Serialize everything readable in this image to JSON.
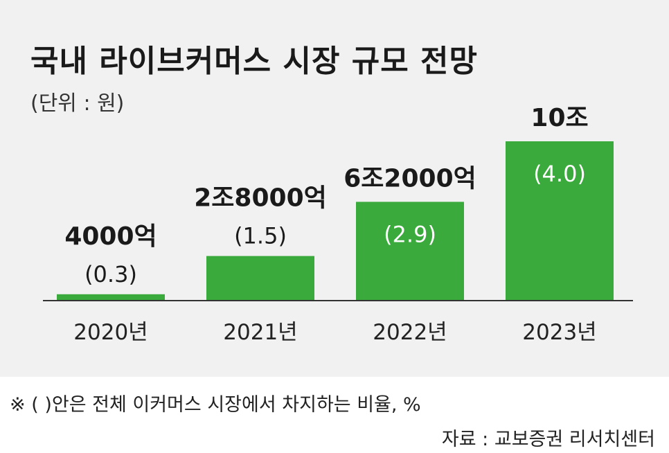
{
  "header": {
    "title": "국내 라이브커머스 시장 규모 전망",
    "unit": "(단위 : 원)"
  },
  "footnote": "※ (   )안은 전체 이커머스 시장에서 차지하는 비율, %",
  "source": "자료 : 교보증권 리서치센터",
  "colors": {
    "bar": "#3aaa3c",
    "background": "#f1f1f1",
    "axis": "#333333",
    "text": "#1a1a1a",
    "in_bar_text": "#ffffff"
  },
  "chart_data": {
    "type": "bar",
    "title": "국내 라이브커머스 시장 규모 전망",
    "unit": "(단위 : 원)",
    "categories": [
      "2020년",
      "2021년",
      "2022년",
      "2023년"
    ],
    "values": [
      4000,
      28000,
      62000,
      100000
    ],
    "value_labels": [
      "4000억",
      "2조8000억",
      "6조2000억",
      "10조"
    ],
    "share_labels": [
      "(0.3)",
      "(1.5)",
      "(2.9)",
      "(4.0)"
    ],
    "share_values": [
      0.3,
      1.5,
      2.9,
      4.0
    ],
    "ylim": [
      0,
      100000
    ],
    "grid": false,
    "legend": "none"
  }
}
